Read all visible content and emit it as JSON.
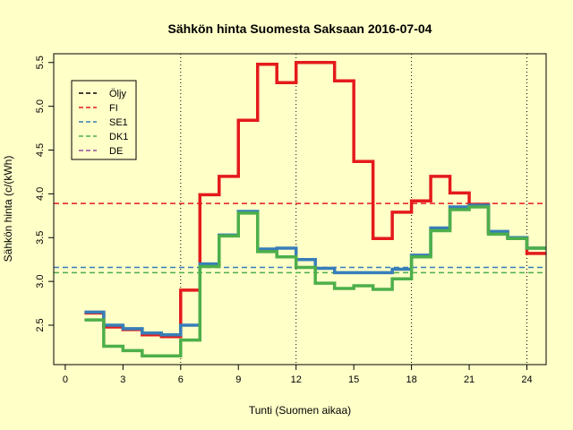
{
  "chart_data": {
    "type": "line",
    "style": "step",
    "title": "Sähkön hinta Suomesta Saksaan 2016-07-04",
    "xlabel": "Tunti (Suomen aikaa)",
    "ylabel": "Sähkön hinta (c/(kWh)",
    "xlim": [
      -0.6,
      25
    ],
    "ylim": [
      2.05,
      5.6
    ],
    "x_ticks": [
      0,
      3,
      6,
      9,
      12,
      15,
      18,
      21,
      24
    ],
    "x_tick_labels": [
      "0",
      "3",
      "6",
      "9",
      "12",
      "15",
      "18",
      "21",
      "24"
    ],
    "y_ticks": [
      2.5,
      3.0,
      3.5,
      4.0,
      4.5,
      5.0,
      5.5
    ],
    "y_tick_labels": [
      "2.5",
      "3.0",
      "3.5",
      "4.0",
      "4.5",
      "5.0",
      "5.5"
    ],
    "vlines": [
      6,
      12,
      18,
      24
    ],
    "legend_position": "top-left",
    "legend": [
      {
        "label": "Öljy",
        "color": "#000000"
      },
      {
        "label": "FI",
        "color": "#e41a1c"
      },
      {
        "label": "SE1",
        "color": "#377eb8"
      },
      {
        "label": "DK1",
        "color": "#4daf4a"
      },
      {
        "label": "DE",
        "color": "#984ea3"
      }
    ],
    "hours": [
      1,
      2,
      3,
      4,
      5,
      6,
      7,
      8,
      9,
      10,
      11,
      12,
      13,
      14,
      15,
      16,
      17,
      18,
      19,
      20,
      21,
      22,
      23,
      24
    ],
    "series": [
      {
        "name": "FI",
        "color": "#e41a1c",
        "values": [
          2.64,
          2.48,
          2.45,
          2.39,
          2.37,
          2.9,
          3.99,
          4.2,
          4.84,
          5.48,
          5.27,
          5.5,
          5.5,
          5.29,
          4.37,
          3.49,
          3.79,
          3.92,
          4.2,
          4.01,
          3.88,
          3.56,
          3.5,
          3.32
        ]
      },
      {
        "name": "SE1",
        "color": "#377eb8",
        "values": [
          2.65,
          2.5,
          2.46,
          2.41,
          2.39,
          2.5,
          3.2,
          3.53,
          3.8,
          3.37,
          3.38,
          3.25,
          3.15,
          3.1,
          3.1,
          3.1,
          3.14,
          3.3,
          3.61,
          3.85,
          3.87,
          3.57,
          3.5,
          3.38
        ]
      },
      {
        "name": "DK1",
        "color": "#4daf4a",
        "values": [
          2.56,
          2.26,
          2.21,
          2.15,
          2.15,
          2.33,
          3.17,
          3.52,
          3.78,
          3.34,
          3.28,
          3.16,
          2.98,
          2.92,
          2.95,
          2.91,
          3.03,
          3.28,
          3.58,
          3.82,
          3.85,
          3.54,
          3.49,
          3.38
        ]
      }
    ],
    "averages": [
      {
        "name": "FI",
        "color": "#e41a1c",
        "value": 3.89
      },
      {
        "name": "SE1",
        "color": "#377eb8",
        "value": 3.16
      },
      {
        "name": "DK1",
        "color": "#4daf4a",
        "value": 3.1
      }
    ]
  }
}
